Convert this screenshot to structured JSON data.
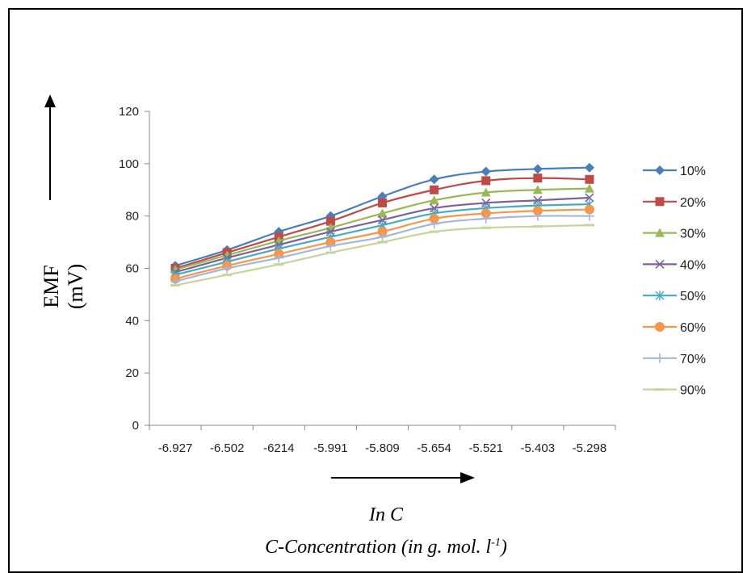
{
  "chart_data": {
    "type": "line",
    "y_axis_label": [
      "EMF",
      "(mV)"
    ],
    "x_axis_label": [
      "In C",
      "C-Concentration (in g. mol. l-1)"
    ],
    "x_axis_unit_superscript": "-1",
    "categories": [
      "-6.927",
      "-6.502",
      "-6214",
      "-5.991",
      "-5.809",
      "-5.654",
      "-5.521",
      "-5.403",
      "-5.298"
    ],
    "ylim": [
      0,
      120
    ],
    "yticks": [
      "0",
      "20",
      "40",
      "60",
      "80",
      "100",
      "120"
    ],
    "grid": false,
    "legend_position": "right",
    "series": [
      {
        "name": "10%",
        "color": "#4a7ebb",
        "marker": "diamond",
        "values": [
          61,
          67,
          74,
          80,
          87.5,
          94,
          97,
          98,
          98.5
        ]
      },
      {
        "name": "20%",
        "color": "#be4b48",
        "marker": "square",
        "values": [
          60,
          66,
          72,
          78,
          85,
          90,
          93.5,
          94.5,
          94
        ]
      },
      {
        "name": "30%",
        "color": "#98b954",
        "marker": "triangle",
        "values": [
          59.5,
          65,
          70.5,
          75.5,
          81,
          86,
          89,
          90,
          90.5
        ]
      },
      {
        "name": "40%",
        "color": "#7d60a0",
        "marker": "x",
        "values": [
          58.5,
          64,
          69,
          74,
          78.5,
          83,
          85,
          86,
          87
        ]
      },
      {
        "name": "50%",
        "color": "#46aac5",
        "marker": "star",
        "values": [
          57.5,
          62.5,
          67.5,
          72,
          76.5,
          81,
          83,
          84,
          84.5
        ]
      },
      {
        "name": "60%",
        "color": "#f79646",
        "marker": "circle",
        "values": [
          56,
          61,
          65.5,
          70,
          74,
          79,
          81,
          82,
          82.5
        ]
      },
      {
        "name": "70%",
        "color": "#a5b6d8",
        "marker": "plus",
        "values": [
          55,
          60,
          64,
          68.5,
          72,
          77,
          79,
          80,
          80
        ]
      },
      {
        "name": "90%",
        "color": "#c3d69b",
        "marker": "dash",
        "values": [
          53.5,
          57.5,
          61.5,
          66,
          70,
          74,
          75.5,
          76,
          76.5
        ]
      }
    ]
  }
}
